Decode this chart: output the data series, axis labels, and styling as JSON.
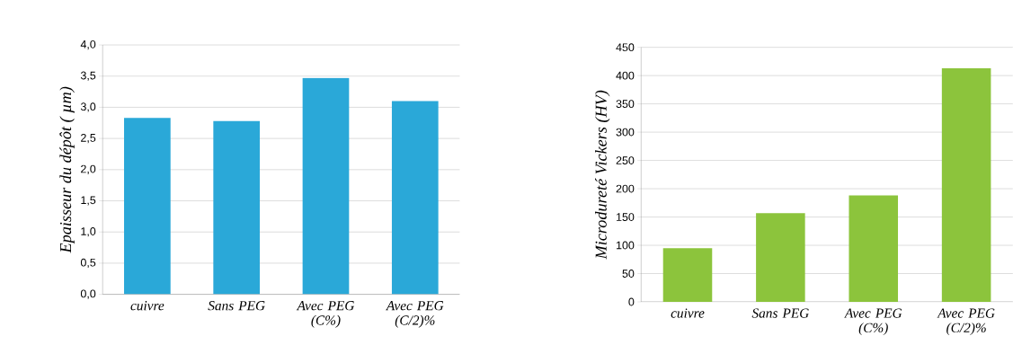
{
  "chart_data": [
    {
      "type": "bar",
      "ylabel": "Epaisseur du dépôt ( µm)",
      "categories": [
        "cuivre",
        "Sans PEG",
        "Avec PEG (C%)",
        "Avec PEG (C/2)%"
      ],
      "values": [
        2.83,
        2.78,
        3.47,
        3.1
      ],
      "color": "#2aa8d8",
      "ylim": [
        0,
        4
      ],
      "yticks": [
        {
          "value": 0,
          "label": "0,0"
        },
        {
          "value": 0.5,
          "label": "0,5"
        },
        {
          "value": 1,
          "label": "1,0"
        },
        {
          "value": 1.5,
          "label": "1,5"
        },
        {
          "value": 2,
          "label": "2,0"
        },
        {
          "value": 2.5,
          "label": "2,5"
        },
        {
          "value": 3,
          "label": "3,0"
        },
        {
          "value": 3.5,
          "label": "3,5"
        },
        {
          "value": 4,
          "label": "4,0"
        }
      ],
      "grid": "y"
    },
    {
      "type": "bar",
      "ylabel": "Microdureté Vickers (HV)",
      "categories": [
        "cuivre",
        "Sans PEG",
        "Avec PEG (C%)",
        "Avec PEG (C/2)%"
      ],
      "values": [
        95,
        157,
        188,
        413
      ],
      "color": "#8cc43c",
      "ylim": [
        0,
        450
      ],
      "yticks": [
        0,
        50,
        100,
        150,
        200,
        250,
        300,
        350,
        400,
        450
      ],
      "grid": "y"
    }
  ]
}
